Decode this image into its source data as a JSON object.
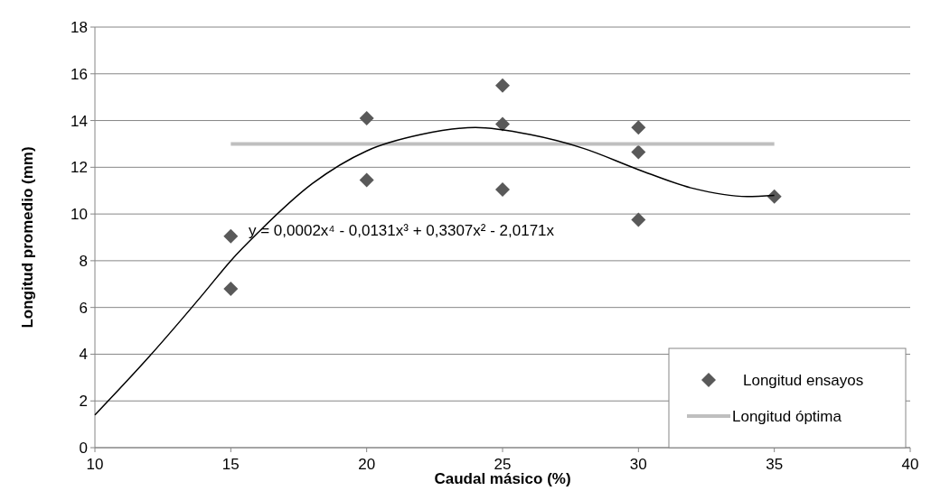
{
  "chart_data": {
    "type": "scatter",
    "xlabel": "Caudal másico (%)",
    "ylabel": "Longitud promedio (mm)",
    "xlim": [
      10,
      40
    ],
    "xticks": [
      10,
      15,
      20,
      25,
      30,
      35,
      40
    ],
    "ylim": [
      0,
      18
    ],
    "yticks": [
      0,
      2,
      4,
      6,
      8,
      10,
      12,
      14,
      16,
      18
    ],
    "grid": "y",
    "legend": "bottom right",
    "annotations": [
      "y = 0,0002x⁴ - 0,0131x³ + 0,3307x² - 2,0171x"
    ],
    "series": [
      {
        "name": "Longitud ensayos",
        "marker": "diamond",
        "color": "#595959",
        "x": [
          15,
          15,
          20,
          20,
          25,
          25,
          25,
          30,
          30,
          30,
          35
        ],
        "values": [
          9.05,
          6.8,
          14.1,
          11.45,
          15.5,
          13.85,
          11.05,
          13.7,
          12.65,
          9.75,
          10.75
        ]
      },
      {
        "name": "Longitud óptima",
        "type": "line",
        "marker": "none",
        "color": "#bfbfbf",
        "x": [
          15,
          35
        ],
        "values": [
          13,
          13
        ]
      },
      {
        "type": "line",
        "marker": "none",
        "color": "#000000",
        "x": [
          10,
          12,
          14,
          15,
          16,
          18,
          20,
          22,
          24,
          26,
          28,
          30,
          32,
          34,
          35
        ],
        "values": [
          1.4,
          3.9,
          6.6,
          8.0,
          9.2,
          11.3,
          12.7,
          13.4,
          13.7,
          13.4,
          12.8,
          11.9,
          11.1,
          10.75,
          10.8
        ]
      }
    ]
  }
}
